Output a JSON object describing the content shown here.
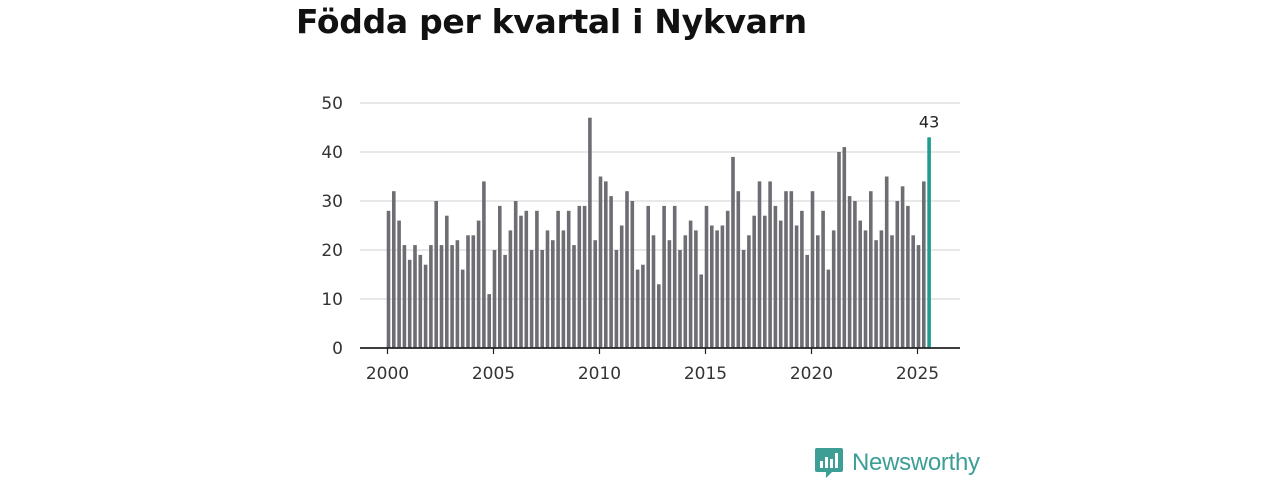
{
  "title": "Födda per kvartal i Nykvarn",
  "brand": {
    "name": "Newsworthy",
    "icon": "newsworthy-logo-icon",
    "color": "#3d9e96"
  },
  "chart_data": {
    "type": "bar",
    "title": "Födda per kvartal i Nykvarn",
    "xlabel": "",
    "ylabel": "",
    "ylim": [
      0,
      50
    ],
    "yticks": [
      0,
      10,
      20,
      30,
      40,
      50
    ],
    "xticks": [
      "2000",
      "2005",
      "2010",
      "2015",
      "2020",
      "2025"
    ],
    "grid": true,
    "bar_color": "#6e6d73",
    "highlight_color": "#1e9e8c",
    "start_year": 2000,
    "quarters_per_year": 4,
    "values": [
      28,
      32,
      26,
      21,
      18,
      21,
      19,
      17,
      21,
      30,
      21,
      27,
      21,
      22,
      16,
      23,
      23,
      26,
      34,
      11,
      20,
      29,
      19,
      24,
      30,
      27,
      28,
      20,
      28,
      20,
      24,
      22,
      28,
      24,
      28,
      21,
      29,
      29,
      47,
      22,
      35,
      34,
      31,
      20,
      25,
      32,
      30,
      16,
      17,
      29,
      23,
      13,
      29,
      22,
      29,
      20,
      23,
      26,
      24,
      15,
      29,
      25,
      24,
      25,
      28,
      39,
      32,
      20,
      23,
      27,
      34,
      27,
      34,
      29,
      26,
      32,
      32,
      25,
      28,
      19,
      32,
      23,
      28,
      16,
      24,
      40,
      41,
      31,
      30,
      26,
      24,
      32,
      22,
      24,
      35,
      23,
      30,
      33,
      29,
      23,
      21,
      34,
      43
    ],
    "highlight": {
      "label": "43",
      "value": 43
    }
  }
}
